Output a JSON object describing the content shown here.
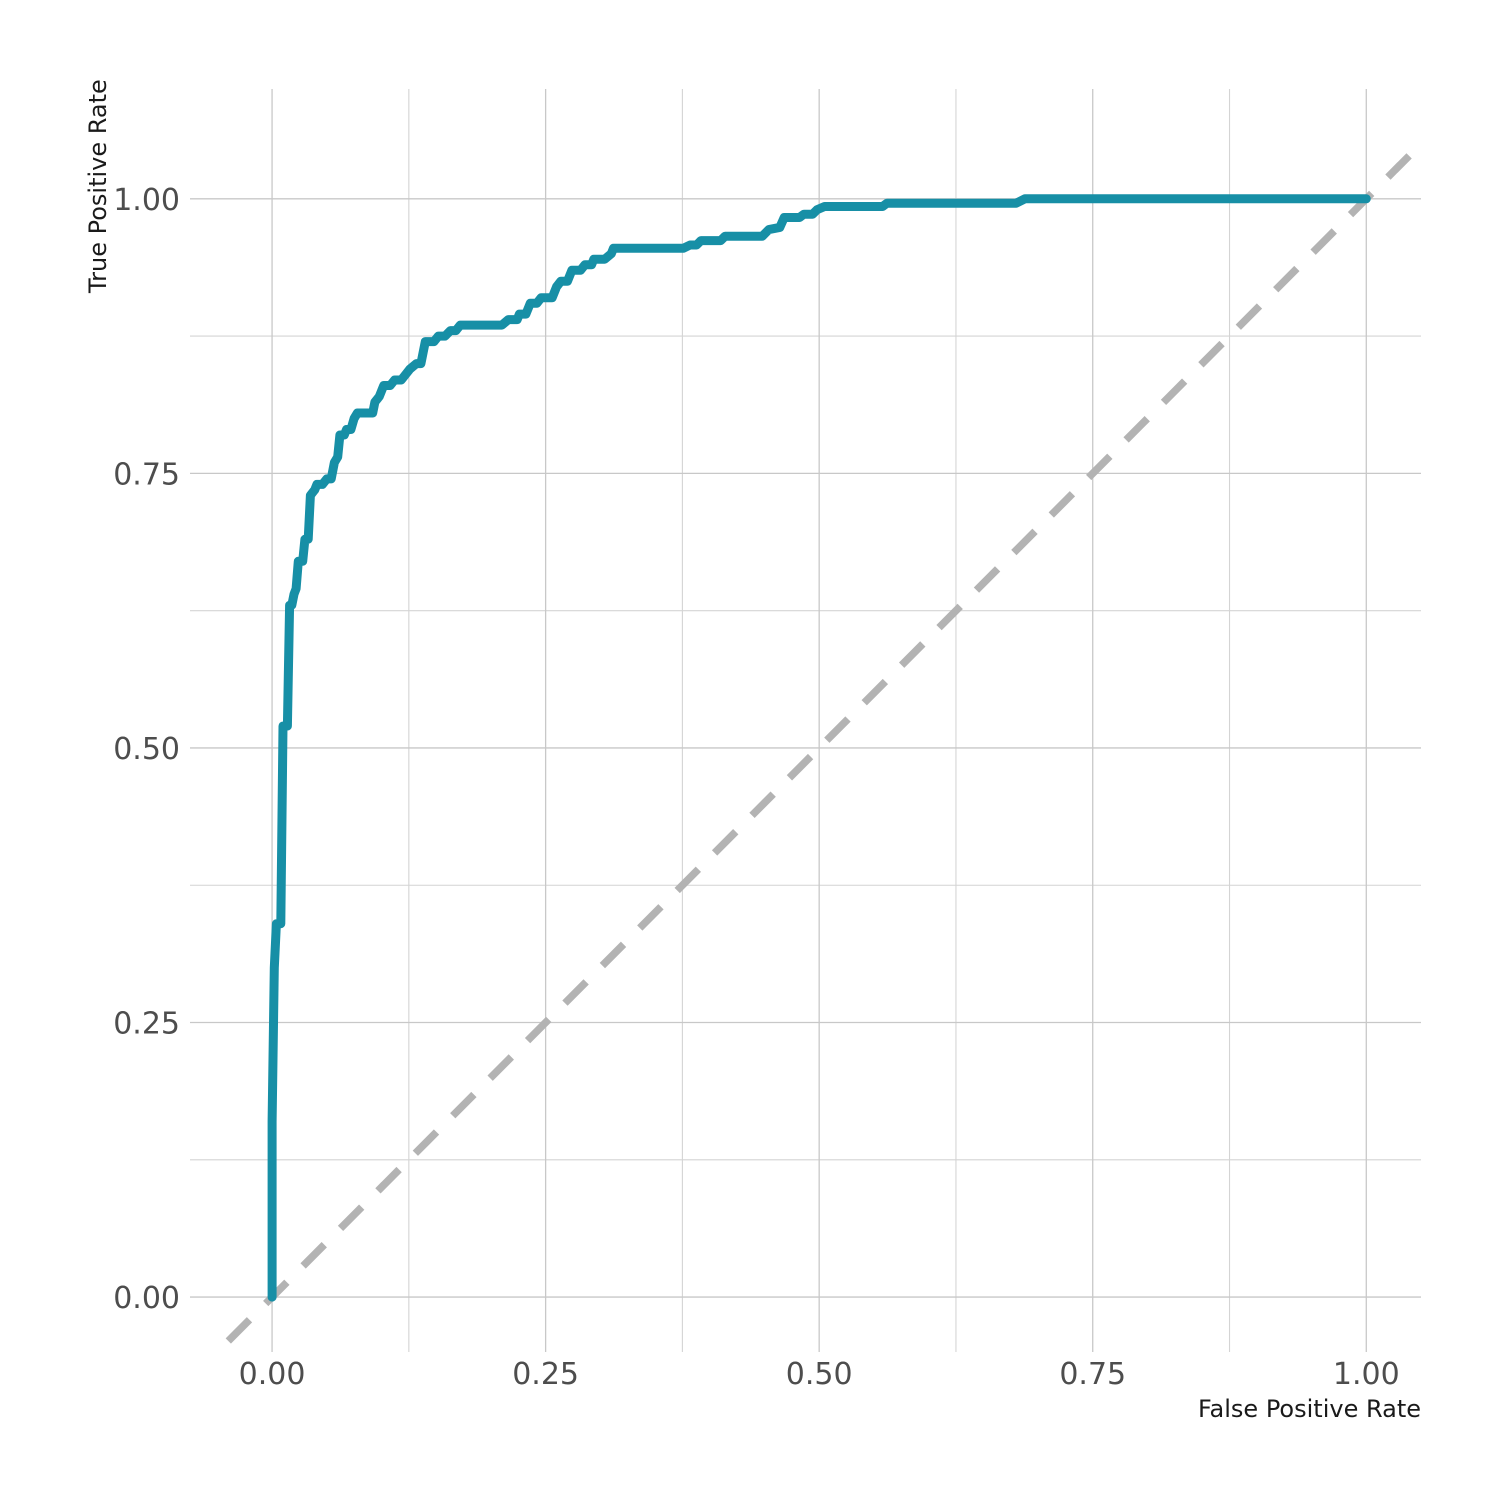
{
  "chart_data": {
    "type": "line",
    "xlabel": "False Positive Rate",
    "ylabel": "True Positive Rate",
    "xlim": [
      -0.075,
      1.05
    ],
    "ylim": [
      -0.05,
      1.1
    ],
    "x_ticks": [
      0,
      0.25,
      0.5,
      0.75,
      1
    ],
    "x_tick_labels": [
      "0.00",
      "0.25",
      "0.50",
      "0.75",
      "1.00"
    ],
    "y_ticks": [
      0,
      0.25,
      0.5,
      0.75,
      1
    ],
    "y_tick_labels": [
      "0.00",
      "0.25",
      "0.50",
      "0.75",
      "1.00"
    ],
    "grid": true,
    "reference_line": {
      "x": [
        -0.04,
        1.05
      ],
      "y": [
        -0.04,
        1.05
      ],
      "style": "dashed",
      "color": "#b3b3b3"
    },
    "series": [
      {
        "color": "#178fa6",
        "points": [
          [
            0.0,
            0.0
          ],
          [
            0.0,
            0.16
          ],
          [
            0.002,
            0.3
          ],
          [
            0.004,
            0.34
          ],
          [
            0.008,
            0.34
          ],
          [
            0.01,
            0.52
          ],
          [
            0.014,
            0.52
          ],
          [
            0.016,
            0.63
          ],
          [
            0.018,
            0.63
          ],
          [
            0.02,
            0.64
          ],
          [
            0.022,
            0.645
          ],
          [
            0.024,
            0.67
          ],
          [
            0.028,
            0.67
          ],
          [
            0.03,
            0.69
          ],
          [
            0.033,
            0.69
          ],
          [
            0.035,
            0.73
          ],
          [
            0.039,
            0.735
          ],
          [
            0.041,
            0.74
          ],
          [
            0.046,
            0.74
          ],
          [
            0.05,
            0.745
          ],
          [
            0.054,
            0.745
          ],
          [
            0.057,
            0.76
          ],
          [
            0.06,
            0.765
          ],
          [
            0.062,
            0.785
          ],
          [
            0.066,
            0.785
          ],
          [
            0.068,
            0.79
          ],
          [
            0.072,
            0.79
          ],
          [
            0.075,
            0.8
          ],
          [
            0.078,
            0.805
          ],
          [
            0.092,
            0.805
          ],
          [
            0.094,
            0.815
          ],
          [
            0.098,
            0.82
          ],
          [
            0.102,
            0.83
          ],
          [
            0.108,
            0.83
          ],
          [
            0.112,
            0.835
          ],
          [
            0.118,
            0.835
          ],
          [
            0.122,
            0.84
          ],
          [
            0.126,
            0.845
          ],
          [
            0.132,
            0.85
          ],
          [
            0.136,
            0.85
          ],
          [
            0.138,
            0.86
          ],
          [
            0.14,
            0.87
          ],
          [
            0.148,
            0.87
          ],
          [
            0.152,
            0.875
          ],
          [
            0.158,
            0.875
          ],
          [
            0.163,
            0.88
          ],
          [
            0.168,
            0.88
          ],
          [
            0.172,
            0.885
          ],
          [
            0.21,
            0.885
          ],
          [
            0.216,
            0.89
          ],
          [
            0.224,
            0.89
          ],
          [
            0.226,
            0.895
          ],
          [
            0.232,
            0.895
          ],
          [
            0.236,
            0.905
          ],
          [
            0.242,
            0.905
          ],
          [
            0.246,
            0.91
          ],
          [
            0.256,
            0.91
          ],
          [
            0.26,
            0.92
          ],
          [
            0.264,
            0.925
          ],
          [
            0.27,
            0.925
          ],
          [
            0.274,
            0.935
          ],
          [
            0.282,
            0.935
          ],
          [
            0.286,
            0.94
          ],
          [
            0.292,
            0.94
          ],
          [
            0.294,
            0.945
          ],
          [
            0.304,
            0.945
          ],
          [
            0.31,
            0.95
          ],
          [
            0.312,
            0.955
          ],
          [
            0.376,
            0.955
          ],
          [
            0.382,
            0.958
          ],
          [
            0.388,
            0.958
          ],
          [
            0.392,
            0.962
          ],
          [
            0.41,
            0.962
          ],
          [
            0.414,
            0.966
          ],
          [
            0.448,
            0.966
          ],
          [
            0.454,
            0.972
          ],
          [
            0.464,
            0.974
          ],
          [
            0.468,
            0.983
          ],
          [
            0.482,
            0.983
          ],
          [
            0.486,
            0.986
          ],
          [
            0.494,
            0.986
          ],
          [
            0.498,
            0.99
          ],
          [
            0.505,
            0.993
          ],
          [
            0.558,
            0.993
          ],
          [
            0.562,
            0.996
          ],
          [
            0.68,
            0.996
          ],
          [
            0.688,
            1.0
          ],
          [
            1.0,
            1.0
          ]
        ]
      }
    ]
  }
}
